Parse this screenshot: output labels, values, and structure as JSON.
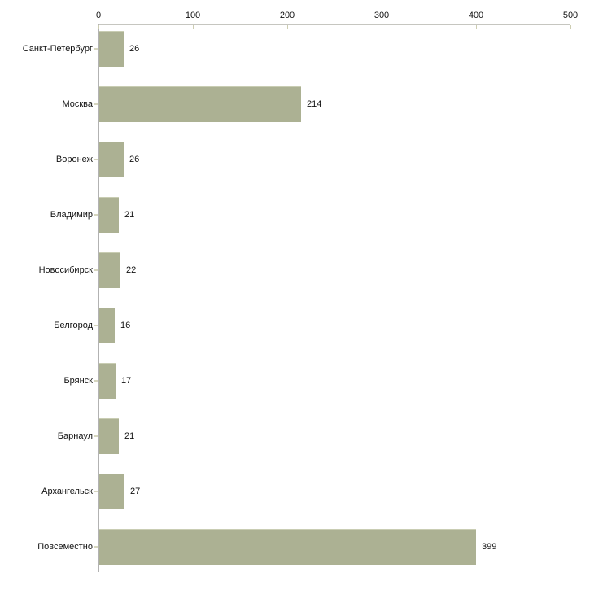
{
  "chart_data": {
    "type": "bar",
    "orientation": "horizontal",
    "title": "",
    "xlabel": "",
    "ylabel": "",
    "categories": [
      "Санкт-Петербург",
      "Москва",
      "Воронеж",
      "Владимир",
      "Новосибирск",
      "Белгород",
      "Брянск",
      "Барнаул",
      "Архангельск",
      "Повсеместно"
    ],
    "values": [
      26,
      214,
      26,
      21,
      22,
      16,
      17,
      21,
      27,
      399
    ],
    "value_labels_shown": true,
    "x_axis": {
      "position": "top",
      "range": [
        0,
        500
      ],
      "ticks": [
        0,
        100,
        200,
        300,
        400,
        500
      ],
      "tick_labels": [
        "0",
        "100",
        "200",
        "300",
        "400",
        "500"
      ]
    },
    "grid": false,
    "legend": false,
    "colors": {
      "bar_fill": "#acb193",
      "bar_top_edge": "#c9cdb3",
      "axis_line_top": "#c6c6c0",
      "axis_line_left": "#b2b2b2",
      "tick_mark": "#cdcdb2",
      "category_tick": "#d6d6bf",
      "text": "#111111",
      "background": "#ffffff"
    }
  }
}
